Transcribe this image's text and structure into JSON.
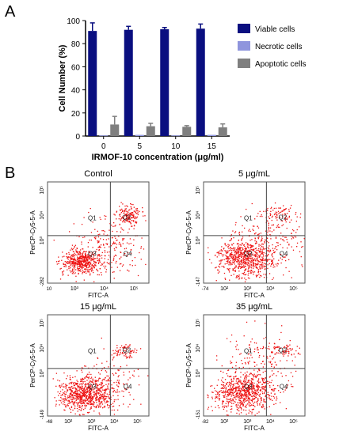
{
  "panel_a": {
    "letter": "A",
    "chart_data": {
      "type": "bar",
      "categories": [
        "0",
        "5",
        "10",
        "15"
      ],
      "series": [
        {
          "name": "Viable cells",
          "color": "#0a0f80",
          "values": [
            91,
            92,
            92.5,
            93
          ],
          "errors": [
            7,
            3,
            1.5,
            4
          ]
        },
        {
          "name": "Necrotic cells",
          "color": "#8f95dd",
          "values": [
            0.5,
            1,
            0.5,
            1
          ],
          "errors": [
            0,
            0,
            0,
            0
          ]
        },
        {
          "name": "Apoptotic cells",
          "color": "#7f7f7f",
          "values": [
            10,
            8.5,
            8,
            7.5
          ],
          "errors": [
            7,
            2.5,
            1,
            3
          ]
        }
      ],
      "xlabel": "IRMOF-10 concentration (μg/ml)",
      "ylabel": "Cell Number (%)",
      "ylim": [
        0,
        100
      ],
      "yticks": [
        "0",
        "20",
        "40",
        "60",
        "80",
        "100"
      ],
      "legend_position": "top-right"
    }
  },
  "panel_b": {
    "letter": "B",
    "axis_x_label": "FITC-A",
    "axis_y_label": "PerCP-Cy5-5-A",
    "dot_color": "#ee1111",
    "quadrant_labels": [
      "Q1",
      "Q2",
      "Q3",
      "Q4"
    ],
    "plots": [
      {
        "title": "Control",
        "x_min_label": "10",
        "y_min_label": "-282",
        "x_tick_labels": [
          "10³",
          "10⁴",
          "10⁵"
        ],
        "y_tick_labels": [
          "10³",
          "10⁴",
          "10⁵"
        ]
      },
      {
        "title": "5 μg/mL",
        "x_min_label": "-74",
        "y_min_label": "-147",
        "x_tick_labels": [
          "10²",
          "10³",
          "10⁴",
          "10⁵"
        ],
        "y_tick_labels": [
          "10³",
          "10⁴",
          "10⁵"
        ]
      },
      {
        "title": "15 μg/mL",
        "x_min_label": "-48",
        "y_min_label": "-149",
        "x_tick_labels": [
          "10²",
          "10³",
          "10⁴",
          "10⁵"
        ],
        "y_tick_labels": [
          "10³",
          "10⁴",
          "10⁵"
        ]
      },
      {
        "title": "35 μg/mL",
        "x_min_label": "-82",
        "y_min_label": "-151",
        "x_tick_labels": [
          "10²",
          "10³",
          "10⁴",
          "10⁵"
        ],
        "y_tick_labels": [
          "10³",
          "10⁴",
          "10⁵"
        ]
      }
    ]
  }
}
